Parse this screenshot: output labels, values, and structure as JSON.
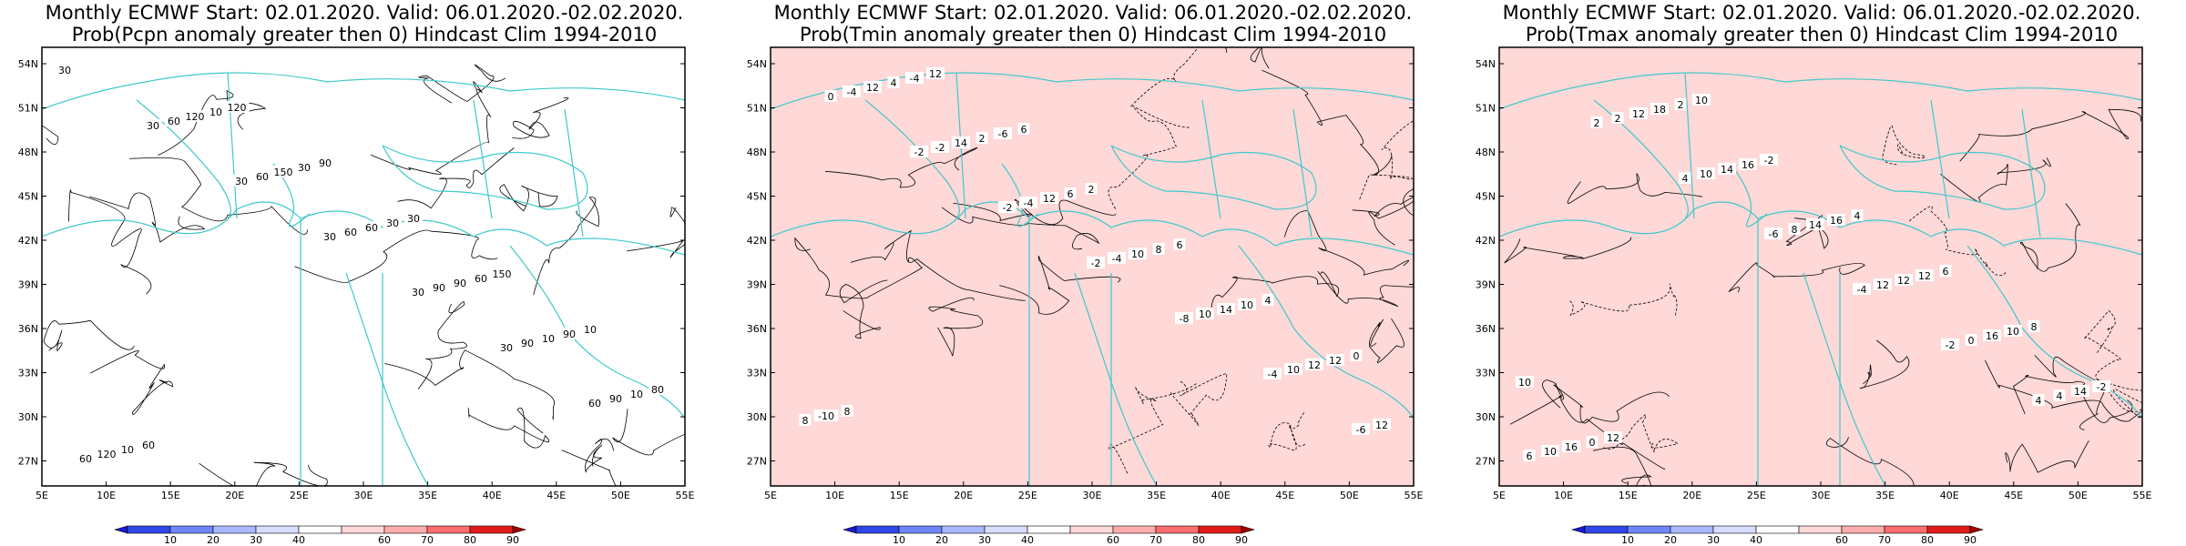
{
  "panels": [
    {
      "id": "pcpn",
      "title_line1": "Monthly ECMWF Start: 02.01.2020. Valid: 06.01.2020.-02.02.2020.",
      "title_line2": "Prob(Pcpn anomaly greater then 0) Hindcast Clim 1994-2010",
      "contour_labels": [
        "30",
        "30",
        "30",
        "30",
        "30",
        "30",
        "60",
        "60",
        "60",
        "60",
        "60",
        "90",
        "90",
        "90",
        "120",
        "120",
        "150",
        "60",
        "90",
        "10",
        "10",
        "10",
        "10",
        "30",
        "30",
        "60",
        "90",
        "80",
        "60",
        "120",
        "90",
        "30",
        "150",
        "10"
      ]
    },
    {
      "id": "tmin",
      "title_line1": "Monthly ECMWF Start: 02.01.2020. Valid: 06.01.2020.-02.02.2020.",
      "title_line2": "Prob(Tmin anomaly greater then 0) Hindcast Clim 1994-2010",
      "contour_labels": [
        "0",
        "-2",
        "-2",
        "-2",
        "-8",
        "-4",
        "-6",
        "-4",
        "-2",
        "-4",
        "-4",
        "10",
        "10",
        "12",
        "12",
        "14",
        "12",
        "10",
        "14",
        "12",
        "8",
        "4",
        "2",
        "6",
        "8",
        "10",
        "12",
        "-10",
        "-4",
        "-6",
        "2",
        "6",
        "4",
        "0",
        "8",
        "12",
        "6"
      ]
    },
    {
      "id": "tmax",
      "title_line1": "Monthly ECMWF Start: 02.01.2020. Valid: 06.01.2020.-02.02.2020.",
      "title_line2": "Prob(Tmax anomaly greater then 0) Hindcast Clim 1994-2010",
      "contour_labels": [
        "2",
        "4",
        "-6",
        "-4",
        "-2",
        "4",
        "6",
        "2",
        "10",
        "8",
        "12",
        "0",
        "4",
        "10",
        "12",
        "14",
        "14",
        "12",
        "16",
        "14",
        "16",
        "18",
        "16",
        "16",
        "12",
        "10",
        "-2",
        "0",
        "2",
        "-2",
        "4",
        "6",
        "8",
        "10",
        "12",
        "10"
      ]
    }
  ],
  "map": {
    "lat_ticks": [
      "54N",
      "51N",
      "48N",
      "45N",
      "42N",
      "39N",
      "36N",
      "33N",
      "30N",
      "27N"
    ],
    "lon_ticks": [
      "5E",
      "10E",
      "15E",
      "20E",
      "25E",
      "30E",
      "35E",
      "40E",
      "45E",
      "50E",
      "55E"
    ]
  },
  "colorbar": {
    "labels": [
      "10",
      "20",
      "30",
      "40",
      "60",
      "70",
      "80",
      "90"
    ],
    "colors": [
      "#1a1acf",
      "#2f47e8",
      "#6f86ff",
      "#aab9ff",
      "#d7ddff",
      "#ffffff",
      "#ffd8d8",
      "#ffadad",
      "#ff6e6e",
      "#e31a1a",
      "#a00000"
    ]
  },
  "colors": {
    "coast": "#3fc9c9",
    "contour": "#000000",
    "frame": "#000000"
  }
}
